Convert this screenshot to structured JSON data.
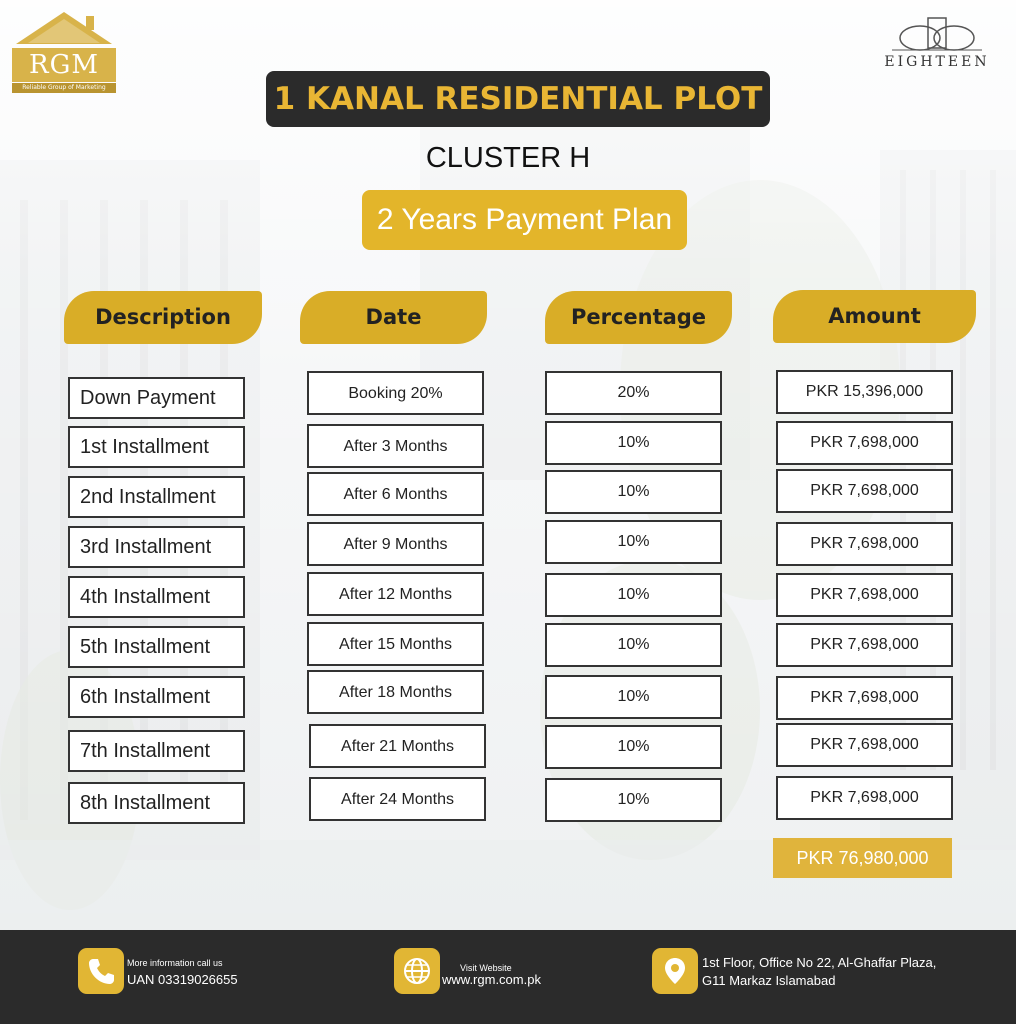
{
  "brand": {
    "rgm_logo_text": "RGM",
    "rgm_tagline": "Reliable Group of Marketing",
    "partner_logo_text": "EIGHTEEN"
  },
  "title": "1 KANAL RESIDENTIAL PLOT",
  "subtitle": "CLUSTER H",
  "plan_label": "2 Years Payment Plan",
  "table": {
    "headers": {
      "description": "Description",
      "date": "Date",
      "percentage": "Percentage",
      "amount": "Amount"
    },
    "rows": [
      {
        "description": "Down Payment",
        "date": "Booking 20%",
        "percentage": "20%",
        "amount": "PKR 15,396,000"
      },
      {
        "description": "1st Installment",
        "date": "After 3 Months",
        "percentage": "10%",
        "amount": "PKR 7,698,000"
      },
      {
        "description": "2nd Installment",
        "date": "After 6 Months",
        "percentage": "10%",
        "amount": "PKR 7,698,000"
      },
      {
        "description": "3rd Installment",
        "date": "After 9 Months",
        "percentage": "10%",
        "amount": "PKR 7,698,000"
      },
      {
        "description": "4th Installment",
        "date": "After 12 Months",
        "percentage": "10%",
        "amount": "PKR 7,698,000"
      },
      {
        "description": "5th Installment",
        "date": "After 15 Months",
        "percentage": "10%",
        "amount": "PKR 7,698,000"
      },
      {
        "description": "6th Installment",
        "date": "After 18 Months",
        "percentage": "10%",
        "amount": "PKR 7,698,000"
      },
      {
        "description": "7th Installment",
        "date": "After 21 Months",
        "percentage": "10%",
        "amount": "PKR 7,698,000"
      },
      {
        "description": "8th Installment",
        "date": "After 24 Months",
        "percentage": "10%",
        "amount": "PKR 7,698,000"
      }
    ],
    "total": "PKR 76,980,000"
  },
  "footer": {
    "phone_caption": "More information call us",
    "phone_value": "UAN 03319026655",
    "website_caption": "Visit Website",
    "website_value": "www.rgm.com.pk",
    "address_line1": "1st Floor, Office No 22, Al-Ghaffar Plaza,",
    "address_line2": "G11 Markaz Islamabad"
  },
  "icons": {
    "phone": "phone-icon",
    "website": "globe-icon",
    "address": "location-pin-icon"
  },
  "colors": {
    "accent": "#e1b634",
    "dark": "#2b2b2b",
    "title_text": "#e9b634"
  }
}
